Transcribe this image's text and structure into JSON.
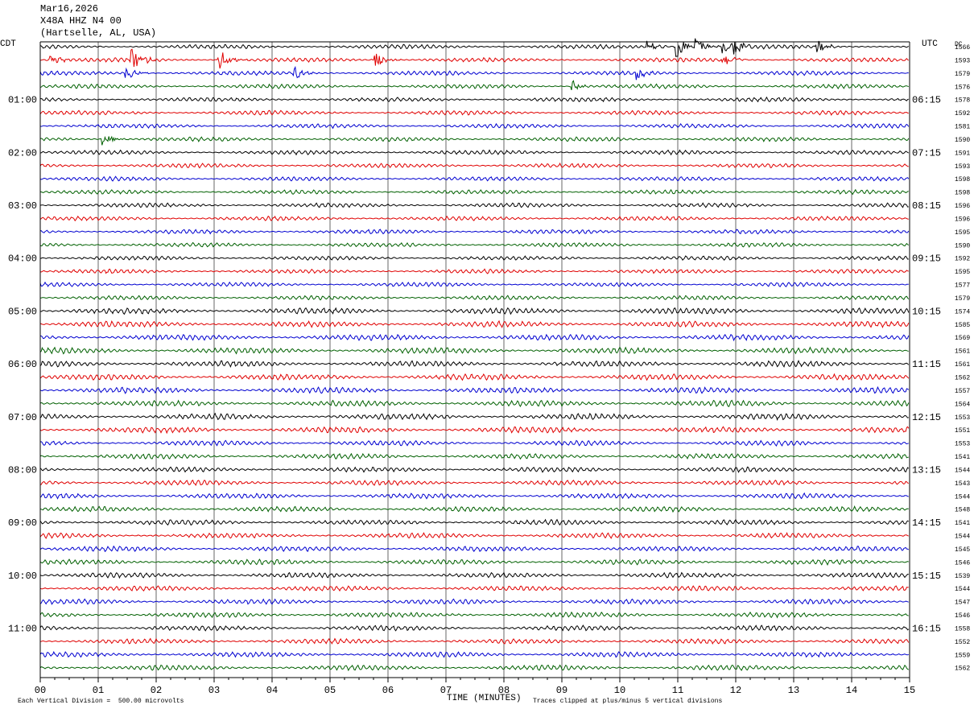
{
  "header": {
    "date": "Mar16,2026",
    "station": "X48A HHZ N4 00",
    "location": "(Hartselle, AL, USA)"
  },
  "left_axis_label": "CDT",
  "right_axis_label": "UTC",
  "dc_label": "DC",
  "footer": {
    "division_note": "Each Vertical Division =  500.00 microvolts",
    "clip_note": "Traces clipped at plus/minus 5 vertical divisions"
  },
  "colors": {
    "trace_cycle": [
      "#000000",
      "#e00000",
      "#0000d0",
      "#006000"
    ],
    "grid": "#000000"
  },
  "chart_data": {
    "type": "line",
    "title": "",
    "xlabel": "TIME (MINUTES)",
    "ylabel": "",
    "xlim": [
      0,
      15
    ],
    "x_ticks": [
      "00",
      "01",
      "02",
      "03",
      "04",
      "05",
      "06",
      "07",
      "08",
      "09",
      "10",
      "11",
      "12",
      "13",
      "14",
      "15"
    ],
    "trace_count": 48,
    "left_time_labels": [
      {
        "row": 4,
        "label": "01:00"
      },
      {
        "row": 8,
        "label": "02:00"
      },
      {
        "row": 12,
        "label": "03:00"
      },
      {
        "row": 16,
        "label": "04:00"
      },
      {
        "row": 20,
        "label": "05:00"
      },
      {
        "row": 24,
        "label": "06:00"
      },
      {
        "row": 28,
        "label": "07:00"
      },
      {
        "row": 32,
        "label": "08:00"
      },
      {
        "row": 36,
        "label": "09:00"
      },
      {
        "row": 40,
        "label": "10:00"
      },
      {
        "row": 44,
        "label": "11:00"
      }
    ],
    "right_time_labels": [
      {
        "row": 4,
        "label": "06:15"
      },
      {
        "row": 8,
        "label": "07:15"
      },
      {
        "row": 12,
        "label": "08:15"
      },
      {
        "row": 16,
        "label": "09:15"
      },
      {
        "row": 20,
        "label": "10:15"
      },
      {
        "row": 24,
        "label": "11:15"
      },
      {
        "row": 28,
        "label": "12:15"
      },
      {
        "row": 32,
        "label": "13:15"
      },
      {
        "row": 36,
        "label": "14:15"
      },
      {
        "row": 40,
        "label": "15:15"
      },
      {
        "row": 44,
        "label": "16:15"
      }
    ],
    "dc_offsets": [
      1566,
      1593,
      1579,
      1576,
      1578,
      1592,
      1581,
      1590,
      1591,
      1593,
      1598,
      1598,
      1596,
      1596,
      1595,
      1590,
      1592,
      1595,
      1577,
      1579,
      1574,
      1585,
      1569,
      1561,
      1561,
      1562,
      1557,
      1564,
      1553,
      1551,
      1553,
      1541,
      1544,
      1543,
      1544,
      1548,
      1541,
      1544,
      1545,
      1546,
      1539,
      1544,
      1547,
      1546,
      1558,
      1552,
      1559,
      1562
    ],
    "events": [
      {
        "row": 0,
        "minute": 10.5,
        "amplitude": 3
      },
      {
        "row": 0,
        "minute": 11.0,
        "amplitude": 6
      },
      {
        "row": 0,
        "minute": 11.3,
        "amplitude": 4
      },
      {
        "row": 0,
        "minute": 11.8,
        "amplitude": 3
      },
      {
        "row": 0,
        "minute": 12.0,
        "amplitude": 3
      },
      {
        "row": 0,
        "minute": 13.4,
        "amplitude": 4
      },
      {
        "row": 1,
        "minute": 0.2,
        "amplitude": 3
      },
      {
        "row": 1,
        "minute": 1.6,
        "amplitude": 5
      },
      {
        "row": 1,
        "minute": 3.1,
        "amplitude": 5
      },
      {
        "row": 1,
        "minute": 5.8,
        "amplitude": 3
      },
      {
        "row": 1,
        "minute": 11.8,
        "amplitude": 4
      },
      {
        "row": 2,
        "minute": 1.5,
        "amplitude": 3
      },
      {
        "row": 2,
        "minute": 4.4,
        "amplitude": 3
      },
      {
        "row": 2,
        "minute": 10.3,
        "amplitude": 3
      },
      {
        "row": 3,
        "minute": 9.2,
        "amplitude": 2.5
      },
      {
        "row": 7,
        "minute": 1.1,
        "amplitude": 3
      }
    ]
  }
}
